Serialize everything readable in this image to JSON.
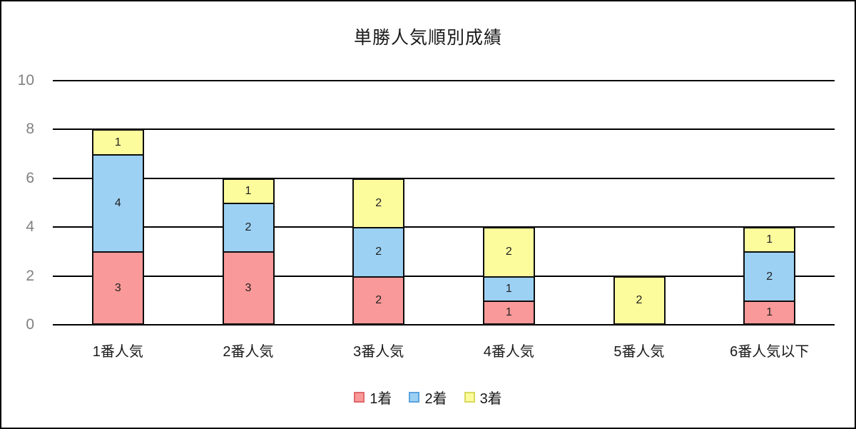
{
  "title": "単勝人気順別成績",
  "chart_data": {
    "type": "bar",
    "stacked": true,
    "title": "単勝人気順別成績",
    "categories": [
      "1番人気",
      "2番人気",
      "3番人気",
      "4番人気",
      "5番人気",
      "6番人気以下"
    ],
    "series": [
      {
        "name": "1着",
        "fill": "#FA9999",
        "legend_border": "#E06A6A",
        "values": [
          3,
          3,
          2,
          1,
          0,
          1
        ]
      },
      {
        "name": "2着",
        "fill": "#9CD1F4",
        "legend_border": "#5CA3DE",
        "values": [
          4,
          2,
          2,
          1,
          0,
          2
        ]
      },
      {
        "name": "3着",
        "fill": "#FCFC9D",
        "legend_border": "#D9D95F",
        "values": [
          1,
          1,
          2,
          2,
          2,
          1
        ]
      }
    ],
    "stack_totals": [
      8,
      6,
      6,
      4,
      2,
      4
    ],
    "ylim": [
      0,
      10
    ],
    "yticks": [
      "0",
      "2",
      "4",
      "6",
      "8",
      "10"
    ],
    "xlabel": "",
    "ylabel": "",
    "grid": true,
    "gridline_color": "#000000",
    "bar_border_color": "#0d0d0d",
    "axis_tick_color": "#808080",
    "legend_position": "bottom",
    "legend_labels": [
      "1着",
      "2着",
      "3着"
    ]
  }
}
